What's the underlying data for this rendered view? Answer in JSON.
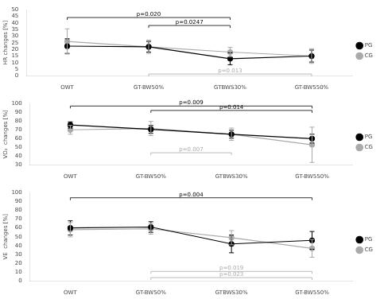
{
  "chart_data": [
    {
      "type": "line",
      "categories": [
        "OWT",
        "GT-BW50%",
        "GTBWS30%",
        "GT-BW550%"
      ],
      "ylabel": "HR changes [%]",
      "ylim": [
        0,
        50
      ],
      "yticks": [
        0,
        5,
        10,
        15,
        20,
        25,
        30,
        35,
        40,
        45,
        50
      ],
      "grid": false,
      "legend": "right",
      "marker": "circle",
      "series": [
        {
          "name": "PG",
          "color": "#000000",
          "values": [
            22.5,
            22.0,
            13.0,
            15.0
          ],
          "errors": [
            5.5,
            4.0,
            4.5,
            4.5
          ]
        },
        {
          "name": "CG",
          "color": "#aaaaaa",
          "values": [
            26.0,
            22.0,
            18.0,
            15.0
          ],
          "errors": [
            9.5,
            5.0,
            3.5,
            5.5
          ]
        }
      ],
      "annotations": [
        {
          "text": "p=0.020",
          "x1": "OWT",
          "x2": "GTBWS30%",
          "y": 44,
          "color": "black"
        },
        {
          "text": "p=0.0247",
          "x1": "GT-BW50%",
          "x2": "GTBWS30%",
          "y": 38,
          "color": "black"
        },
        {
          "text": "p=0.013",
          "x1": "GT-BW50%",
          "x2": "GT-BW550%",
          "y": 1.5,
          "color": "#aaaaaa"
        }
      ]
    },
    {
      "type": "line",
      "categories": [
        "OWT",
        "GT-BW50%",
        "GTBWS30%",
        "GT-BW550%"
      ],
      "ylabel": "VO₂  changes [%]",
      "ylim": [
        30,
        100
      ],
      "yticks": [
        30,
        40,
        50,
        60,
        70,
        80,
        90,
        100
      ],
      "grid": false,
      "legend": "right",
      "marker": "circle",
      "series": [
        {
          "name": "PG",
          "color": "#000000",
          "values": [
            75.5,
            70.5,
            65.0,
            60.0
          ],
          "errors": [
            3.5,
            4.5,
            4.5,
            5.0
          ]
        },
        {
          "name": "CG",
          "color": "#aaaaaa",
          "values": [
            70.0,
            71.5,
            65.0,
            53.0
          ],
          "errors": [
            5.0,
            8.0,
            7.0,
            20.0
          ]
        }
      ],
      "annotations": [
        {
          "text": "p=0.009",
          "x1": "OWT",
          "x2": "GT-BW550%",
          "y": 97,
          "color": "black"
        },
        {
          "text": "p=0.014",
          "x1": "GT-BW50%",
          "x2": "GT-BW550%",
          "y": 92,
          "color": "black"
        },
        {
          "text": "p=0.007",
          "x1": "GT-BW50%",
          "x2": "GTBWS30%",
          "y": 44,
          "color": "#aaaaaa"
        }
      ]
    },
    {
      "type": "line",
      "categories": [
        "OWT",
        "GT-BW50%",
        "GTBWS30%",
        "GT-BW550%"
      ],
      "ylabel": "VE  changes [%]",
      "ylim": [
        0,
        100
      ],
      "yticks": [
        0,
        10,
        20,
        30,
        40,
        50,
        60,
        70,
        80,
        90,
        100
      ],
      "grid": false,
      "legend": "right",
      "marker": "circle",
      "series": [
        {
          "name": "PG",
          "color": "#000000",
          "values": [
            60.0,
            61.0,
            42.0,
            46.0
          ],
          "errors": [
            8.0,
            6.0,
            10.0,
            10.0
          ]
        },
        {
          "name": "CG",
          "color": "#aaaaaa",
          "values": [
            58.0,
            59.0,
            49.0,
            37.0
          ],
          "errors": [
            8.0,
            6.0,
            8.0,
            10.0
          ]
        }
      ],
      "annotations": [
        {
          "text": "p=0.004",
          "x1": "OWT",
          "x2": "GT-BW550%",
          "y": 94,
          "color": "black"
        },
        {
          "text": "p=0.019",
          "x1": "GT-BW50%",
          "x2": "GT-BW550%",
          "y": 11,
          "color": "#aaaaaa"
        },
        {
          "text": "p=0.023",
          "x1": "GT-BW50%",
          "x2": "GT-BW550%",
          "y": 4,
          "color": "#aaaaaa"
        }
      ]
    }
  ]
}
